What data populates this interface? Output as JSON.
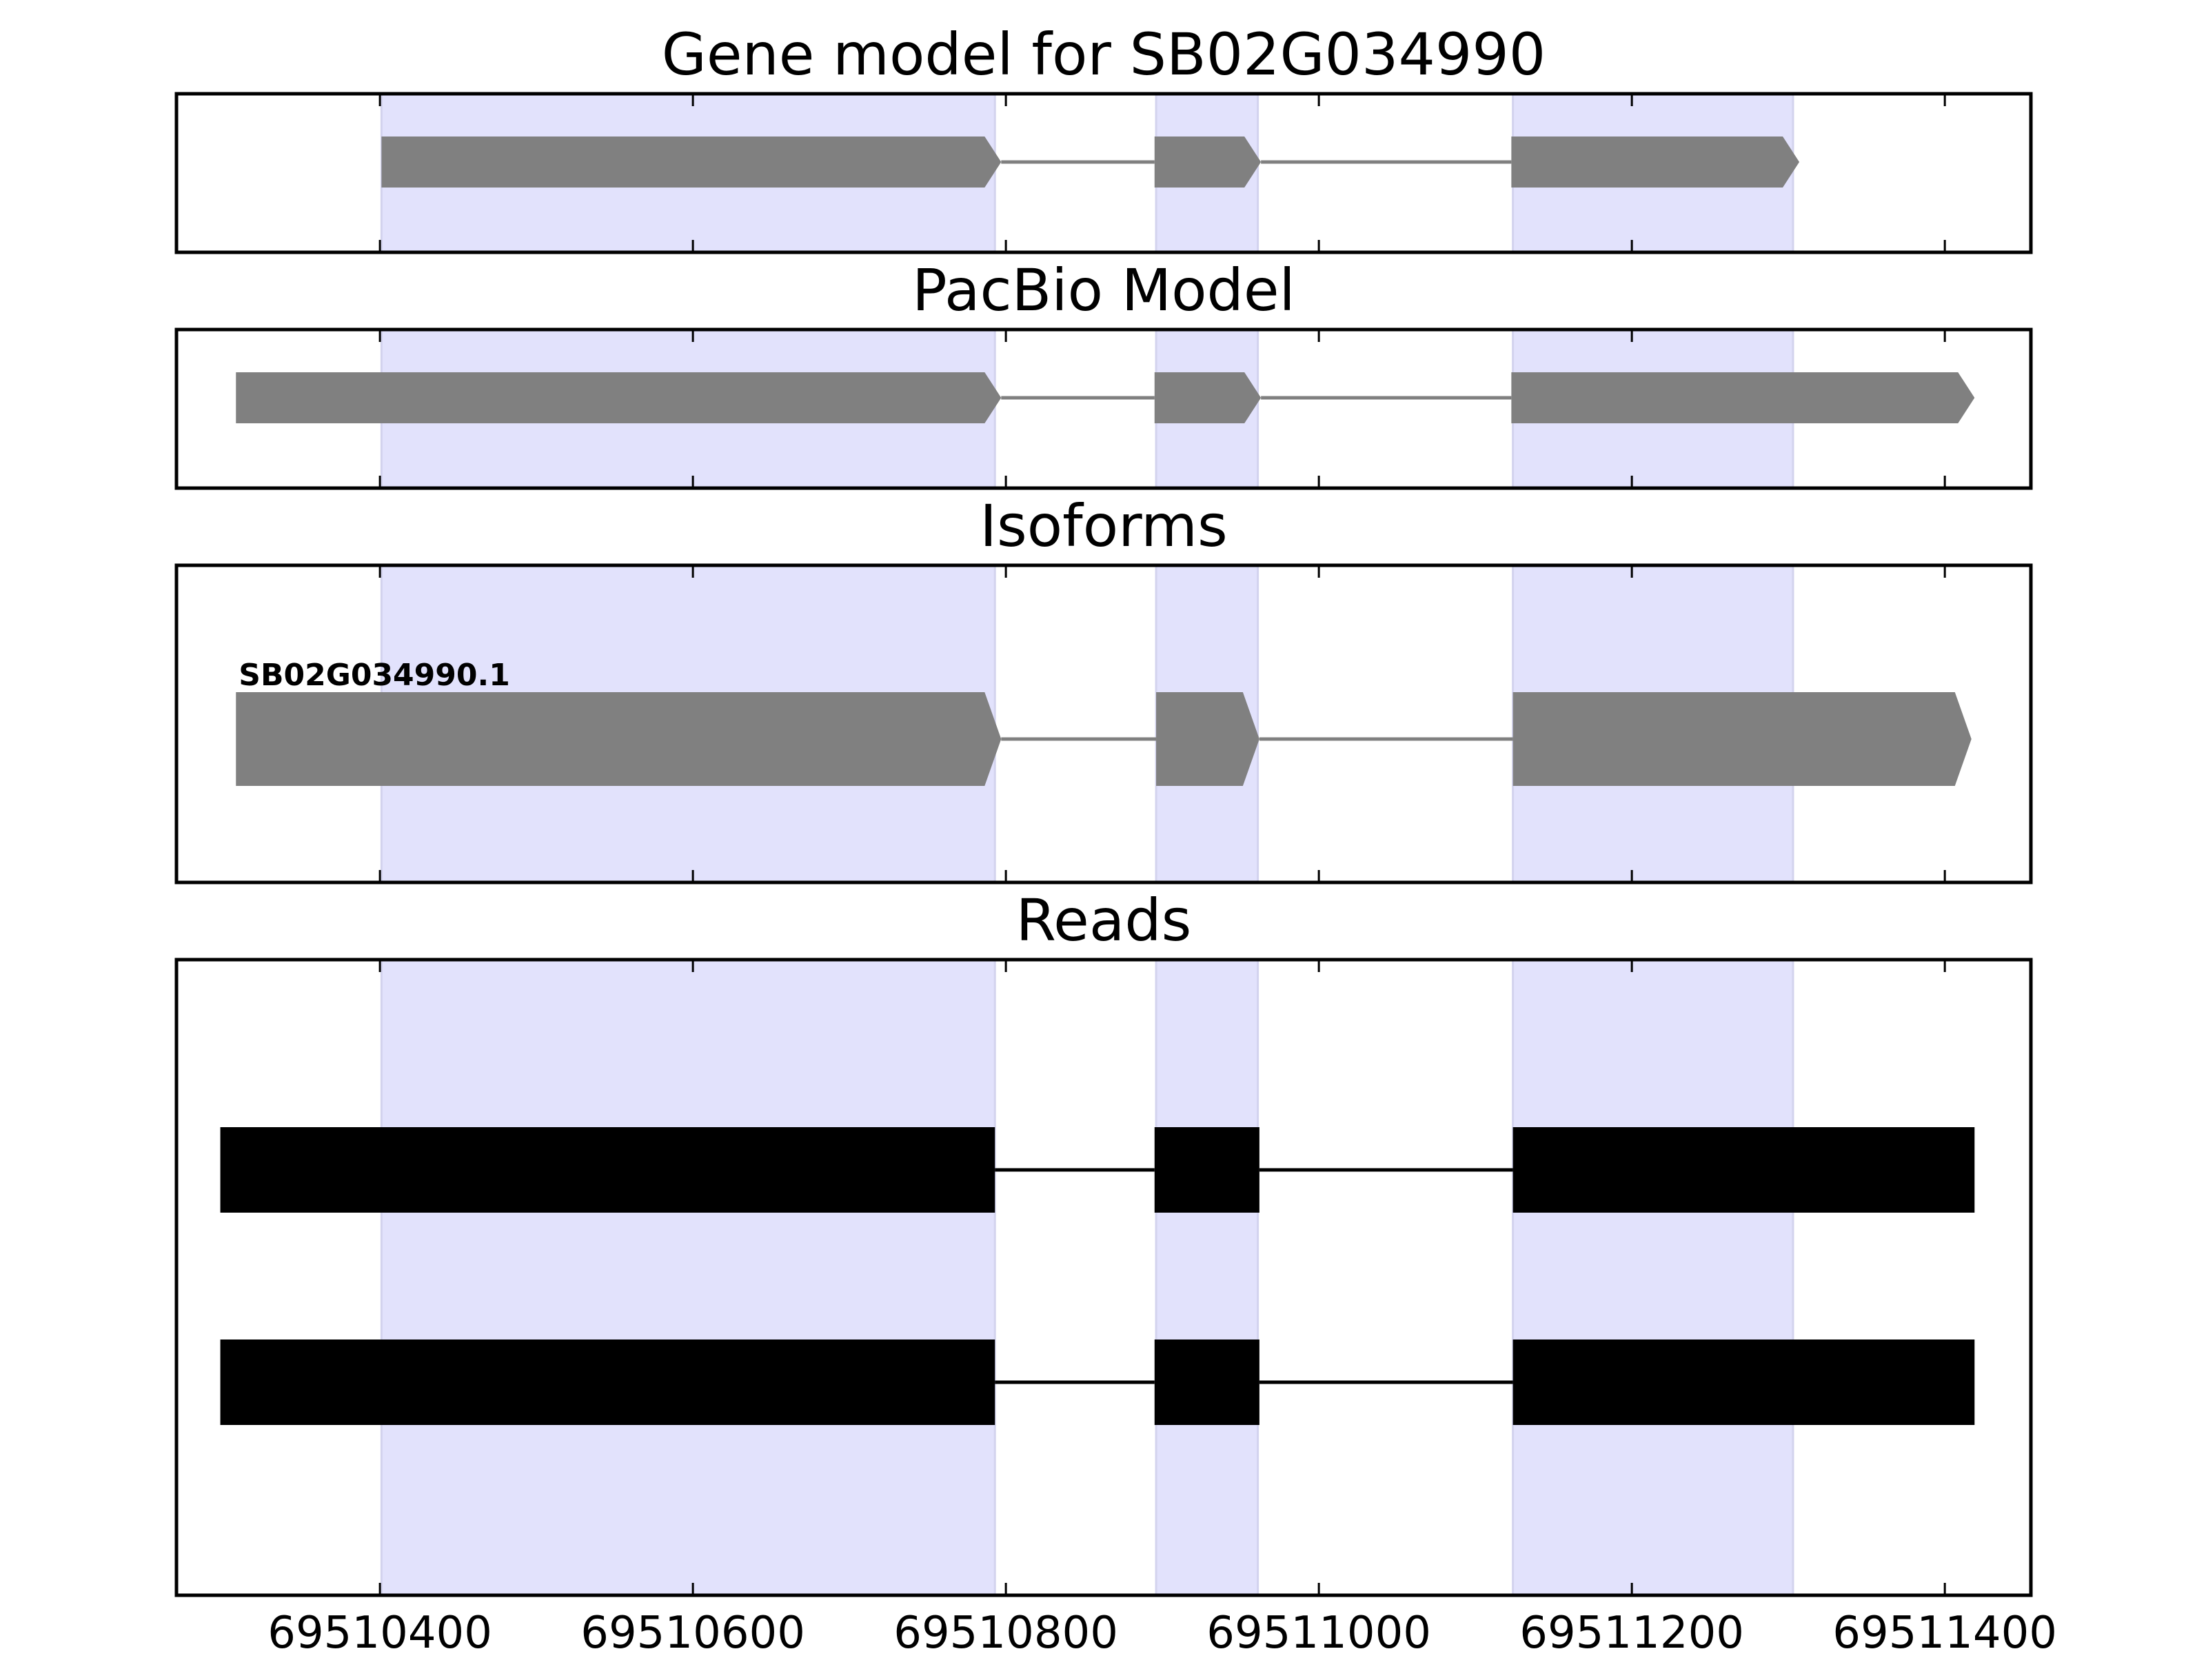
{
  "chart_data": {
    "type": "gene_structure",
    "x_ticks": [
      69510400,
      69510600,
      69510800,
      69511000,
      69511200,
      69511400
    ],
    "xlim": [
      69510270,
      69511455
    ],
    "highlight_color": "#e2e2fc",
    "highlight_regions": [
      [
        69510401,
        69510793
      ],
      [
        69510896,
        69510961
      ],
      [
        69511124,
        69511303
      ]
    ],
    "feature_color": "#808080",
    "read_color": "#000000",
    "strand": "+",
    "panels": [
      {
        "title": "Gene model for SB02G034990",
        "tracks": [
          {
            "label": "",
            "exons": [
              [
                69510401,
                69510797
              ],
              [
                69510895,
                69510963
              ],
              [
                69511123,
                69511307
              ]
            ]
          }
        ]
      },
      {
        "title": "PacBio Model",
        "tracks": [
          {
            "label": "",
            "exons": [
              [
                69510308,
                69510797
              ],
              [
                69510895,
                69510963
              ],
              [
                69511123,
                69511419
              ]
            ]
          }
        ]
      },
      {
        "title": "Isoforms",
        "tracks": [
          {
            "label": "SB02G034990.1",
            "exons": [
              [
                69510308,
                69510797
              ],
              [
                69510896,
                69510962
              ],
              [
                69511124,
                69511417
              ]
            ]
          }
        ]
      },
      {
        "title": "Reads",
        "tracks": [
          {
            "label": "",
            "exons": [
              [
                69510298,
                69510793
              ],
              [
                69510895,
                69510962
              ],
              [
                69511124,
                69511419
              ]
            ]
          },
          {
            "label": "",
            "exons": [
              [
                69510298,
                69510793
              ],
              [
                69510895,
                69510962
              ],
              [
                69511124,
                69511419
              ]
            ]
          }
        ]
      }
    ]
  }
}
